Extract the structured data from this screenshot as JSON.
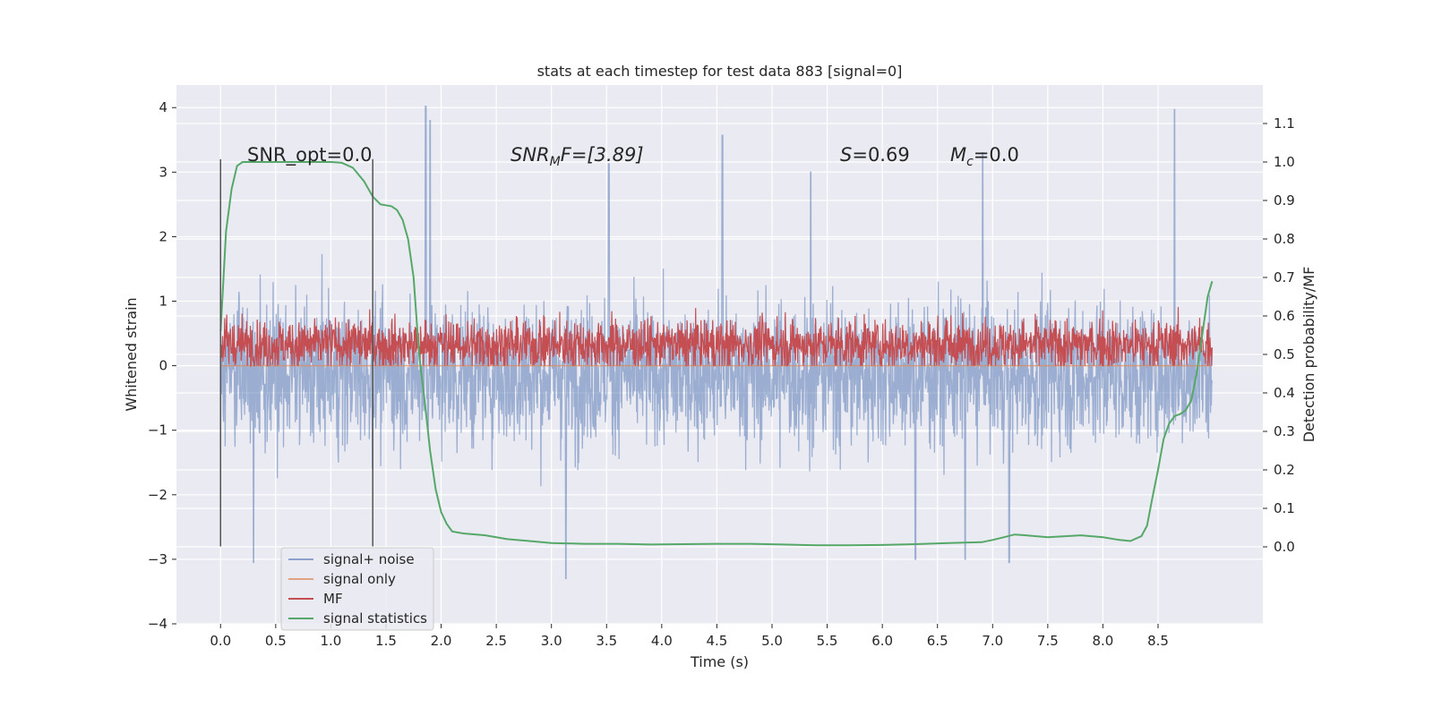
{
  "chart_data": {
    "type": "line",
    "title": "stats at each timestep for test data 883 [signal=0]",
    "xlabel": "Time (s)",
    "ylabel": "Whitened strain",
    "y2label": "Detection probability/MF",
    "xlim": [
      -0.4,
      9.45
    ],
    "ylim": [
      -4.0,
      4.35
    ],
    "y2lim": [
      -0.2,
      1.2
    ],
    "xticks": [
      0.0,
      0.5,
      1.0,
      1.5,
      2.0,
      2.5,
      3.0,
      3.5,
      4.0,
      4.5,
      5.0,
      5.5,
      6.0,
      6.5,
      7.0,
      7.5,
      8.0,
      8.5
    ],
    "xtick_labels": [
      "0.0",
      "0.5",
      "1.0",
      "1.5",
      "2.0",
      "2.5",
      "3.0",
      "3.5",
      "4.0",
      "4.5",
      "5.0",
      "5.5",
      "6.0",
      "6.5",
      "7.0",
      "7.5",
      "8.0",
      "8.5"
    ],
    "yticks": [
      4,
      3,
      2,
      1,
      0,
      -1,
      -2,
      -3,
      -4
    ],
    "ytick_labels": [
      "4",
      "3",
      "2",
      "1",
      "0",
      "−1",
      "−2",
      "−3",
      "−4"
    ],
    "y2ticks": [
      1.1,
      1.0,
      0.9,
      0.8,
      0.7,
      0.6,
      0.5,
      0.4,
      0.3,
      0.2,
      0.1,
      0.0
    ],
    "y2tick_labels": [
      "1.1",
      "1.0",
      "0.9",
      "0.8",
      "0.7",
      "0.6",
      "0.5",
      "0.4",
      "0.3",
      "0.2",
      "0.1",
      "0.0"
    ],
    "grid": true,
    "legend_position": "lower-left",
    "annotations": {
      "snr_opt": "SNR_opt=0.0",
      "snr_mf_base": "SNR",
      "snr_mf_sub": "M",
      "snr_mf_rest": "F=[3.89]",
      "s_var": "S",
      "s_rest": "=0.69",
      "mc_var": "M",
      "mc_sub": "c",
      "mc_rest": "=0.0"
    },
    "vertical_markers": [
      {
        "x": 0.0,
        "y_range": [
          -2.8,
          3.2
        ]
      },
      {
        "x": 1.38,
        "y_range": [
          -2.8,
          3.2
        ]
      }
    ],
    "series": [
      {
        "name": "signal+ noise",
        "color": "#4c72b0",
        "t_range": [
          0.0,
          8.99
        ],
        "envelope": {
          "typical_high": 1.3,
          "typical_low": -1.6,
          "spikes_high": [
            [
              1.86,
              4.02
            ],
            [
              1.9,
              3.8
            ],
            [
              3.52,
              3.13
            ],
            [
              4.55,
              3.57
            ],
            [
              5.35,
              3.0
            ],
            [
              6.91,
              3.3
            ],
            [
              8.65,
              3.97
            ]
          ],
          "spikes_low": [
            [
              0.3,
              -3.05
            ],
            [
              3.13,
              -3.36
            ],
            [
              6.3,
              -3.0
            ],
            [
              6.75,
              -3.0
            ],
            [
              7.15,
              -3.05
            ]
          ]
        }
      },
      {
        "name": "signal only",
        "color": "#dd8452",
        "t_range": [
          0.0,
          8.99
        ],
        "value": 0.0
      },
      {
        "name": "MF",
        "color": "#c44e52",
        "t_range": [
          0.0,
          8.99
        ],
        "envelope": {
          "typical_high": 0.55,
          "typical_low": 0.1,
          "max": 0.95,
          "min": 0.0
        }
      },
      {
        "name": "signal statistics",
        "color": "#55a868",
        "axis": "right",
        "x": [
          0.0,
          0.05,
          0.1,
          0.15,
          0.2,
          0.3,
          0.5,
          0.8,
          1.0,
          1.1,
          1.2,
          1.3,
          1.38,
          1.45,
          1.55,
          1.6,
          1.65,
          1.7,
          1.75,
          1.8,
          1.85,
          1.9,
          1.95,
          2.0,
          2.05,
          2.1,
          2.2,
          2.4,
          2.6,
          2.8,
          3.0,
          3.3,
          3.6,
          3.9,
          4.2,
          4.5,
          4.8,
          5.1,
          5.4,
          5.7,
          6.0,
          6.3,
          6.6,
          6.9,
          7.0,
          7.1,
          7.2,
          7.3,
          7.5,
          7.8,
          8.0,
          8.15,
          8.25,
          8.35,
          8.4,
          8.45,
          8.5,
          8.55,
          8.6,
          8.65,
          8.7,
          8.75,
          8.8,
          8.85,
          8.9,
          8.95,
          8.99
        ],
        "y": [
          0.56,
          0.82,
          0.93,
          0.99,
          1.0,
          1.0,
          1.0,
          1.0,
          1.0,
          0.998,
          0.985,
          0.95,
          0.91,
          0.89,
          0.885,
          0.875,
          0.85,
          0.8,
          0.7,
          0.5,
          0.38,
          0.25,
          0.15,
          0.09,
          0.06,
          0.04,
          0.035,
          0.03,
          0.02,
          0.015,
          0.01,
          0.008,
          0.008,
          0.006,
          0.007,
          0.008,
          0.008,
          0.006,
          0.004,
          0.004,
          0.005,
          0.007,
          0.01,
          0.012,
          0.018,
          0.025,
          0.032,
          0.03,
          0.025,
          0.03,
          0.025,
          0.018,
          0.015,
          0.028,
          0.055,
          0.13,
          0.2,
          0.28,
          0.32,
          0.34,
          0.345,
          0.355,
          0.38,
          0.45,
          0.55,
          0.65,
          0.69
        ]
      }
    ]
  }
}
